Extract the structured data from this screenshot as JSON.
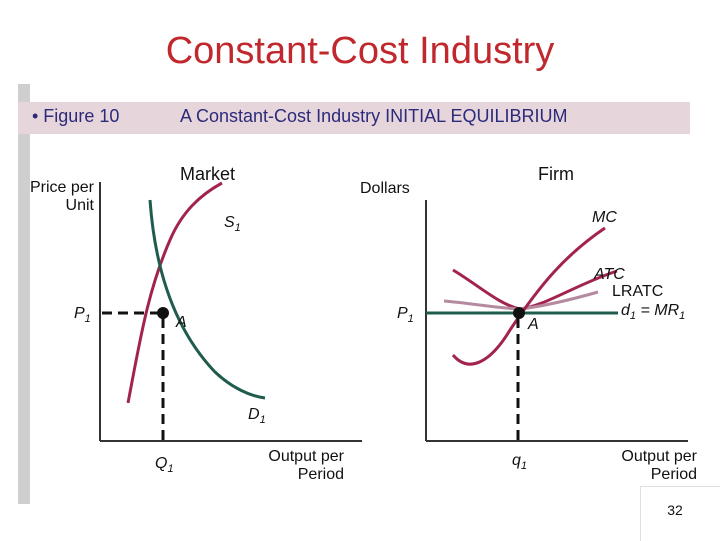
{
  "slide": {
    "title": "Constant-Cost Industry",
    "figure_label": "• Figure 10",
    "figure_caption": "A Constant-Cost Industry INITIAL EQUILIBRIUM",
    "page_number": "32"
  },
  "market": {
    "title": "Market",
    "y_axis_label_line1": "Price per",
    "y_axis_label_line2": "Unit",
    "x_axis_label_line1": "Output per",
    "x_axis_label_line2": "Period",
    "supply_label": "S",
    "supply_sub": "1",
    "demand_label": "D",
    "demand_sub": "1",
    "price_label": "P",
    "price_sub": "1",
    "quantity_label": "Q",
    "quantity_sub": "1",
    "point_label": "A"
  },
  "firm": {
    "title": "Firm",
    "y_axis_label": "Dollars",
    "x_axis_label_line1": "Output per",
    "x_axis_label_line2": "Period",
    "mc_label": "MC",
    "atc_label": "ATC",
    "lratc_label": "LRATC",
    "demand_label": "d",
    "demand_sub": "1",
    "demand_eq": " = MR",
    "demand_eq_sub": "1",
    "price_label": "P",
    "price_sub": "1",
    "quantity_label": "q",
    "quantity_sub": "1",
    "point_label": "A"
  },
  "colors": {
    "title": "#c0282d",
    "banner_bg": "#e7d5dc",
    "banner_text": "#2b2b7a",
    "supply": "#a3234f",
    "demand": "#1f5c4e",
    "mc": "#a3234f",
    "atc": "#b58aa0",
    "lratc": "#a3234f",
    "firm_demand": "#1f5c4e",
    "axes": "#333333"
  }
}
